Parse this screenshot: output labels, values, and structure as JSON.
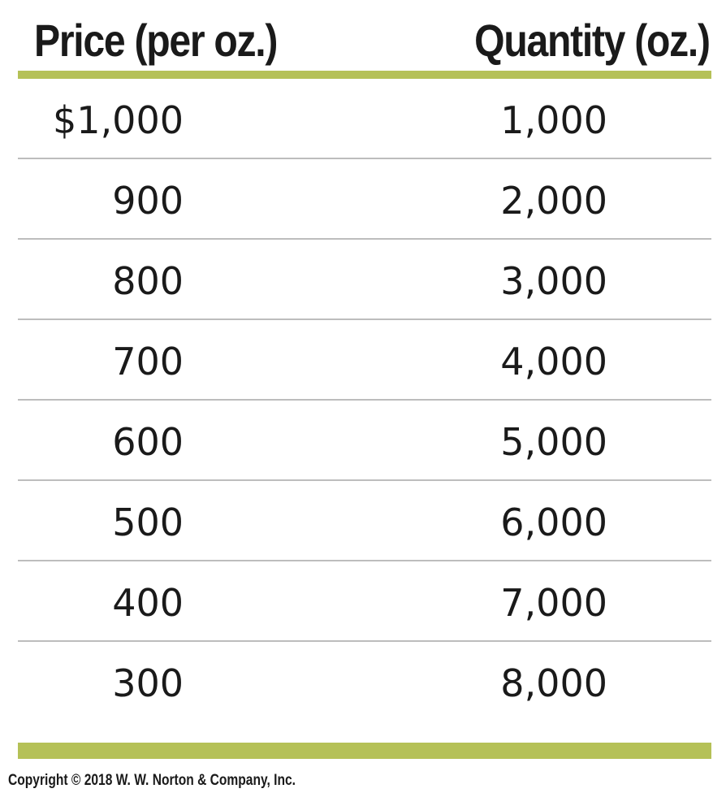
{
  "colors": {
    "accent": "#b5c157",
    "rule": "#bdbdbd",
    "text": "#1a1a1a"
  },
  "chart_data": {
    "type": "table",
    "columns": [
      "Price (per oz.)",
      "Quantity (oz.)"
    ],
    "rows": [
      [
        "$1,000",
        "1,000"
      ],
      [
        "900",
        "2,000"
      ],
      [
        "800",
        "3,000"
      ],
      [
        "700",
        "4,000"
      ],
      [
        "600",
        "5,000"
      ],
      [
        "500",
        "6,000"
      ],
      [
        "400",
        "7,000"
      ],
      [
        "300",
        "8,000"
      ]
    ]
  },
  "footer": {
    "copyright": "Copyright © 2018 W. W. Norton & Company, Inc."
  }
}
